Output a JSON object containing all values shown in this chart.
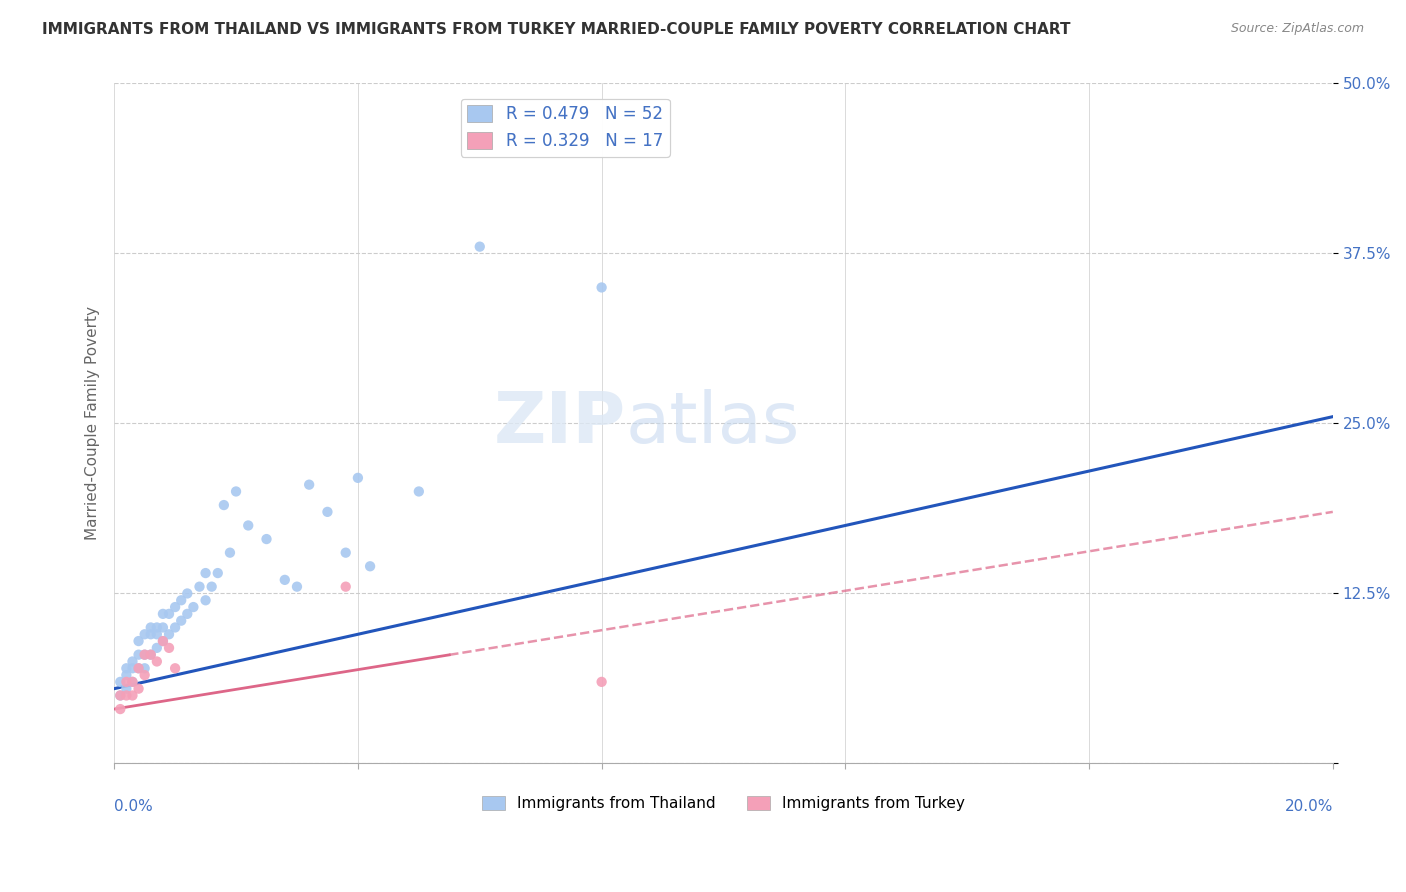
{
  "title": "IMMIGRANTS FROM THAILAND VS IMMIGRANTS FROM TURKEY MARRIED-COUPLE FAMILY POVERTY CORRELATION CHART",
  "source": "Source: ZipAtlas.com",
  "ylabel": "Married-Couple Family Poverty",
  "legend1": "R = 0.479   N = 52",
  "legend2": "R = 0.329   N = 17",
  "legend_label1": "Immigrants from Thailand",
  "legend_label2": "Immigrants from Turkey",
  "color_thailand": "#a8c8f0",
  "color_turkey": "#f4a0b8",
  "line_color_thailand": "#2255bb",
  "line_color_turkey": "#dd6688",
  "xlim": [
    0,
    0.2
  ],
  "ylim": [
    0,
    0.5
  ],
  "thailand_x": [
    0.001,
    0.001,
    0.002,
    0.002,
    0.002,
    0.003,
    0.003,
    0.003,
    0.004,
    0.004,
    0.004,
    0.005,
    0.005,
    0.005,
    0.006,
    0.006,
    0.006,
    0.007,
    0.007,
    0.007,
    0.008,
    0.008,
    0.008,
    0.009,
    0.009,
    0.01,
    0.01,
    0.011,
    0.011,
    0.012,
    0.012,
    0.013,
    0.014,
    0.015,
    0.015,
    0.016,
    0.017,
    0.018,
    0.019,
    0.02,
    0.022,
    0.025,
    0.028,
    0.03,
    0.032,
    0.035,
    0.038,
    0.04,
    0.042,
    0.05,
    0.06,
    0.08
  ],
  "thailand_y": [
    0.05,
    0.06,
    0.055,
    0.065,
    0.07,
    0.06,
    0.07,
    0.075,
    0.07,
    0.08,
    0.09,
    0.07,
    0.08,
    0.095,
    0.08,
    0.095,
    0.1,
    0.085,
    0.095,
    0.1,
    0.09,
    0.1,
    0.11,
    0.095,
    0.11,
    0.1,
    0.115,
    0.105,
    0.12,
    0.11,
    0.125,
    0.115,
    0.13,
    0.12,
    0.14,
    0.13,
    0.14,
    0.19,
    0.155,
    0.2,
    0.175,
    0.165,
    0.135,
    0.13,
    0.205,
    0.185,
    0.155,
    0.21,
    0.145,
    0.2,
    0.38,
    0.35
  ],
  "turkey_x": [
    0.001,
    0.001,
    0.002,
    0.002,
    0.003,
    0.003,
    0.004,
    0.004,
    0.005,
    0.005,
    0.006,
    0.007,
    0.008,
    0.009,
    0.01,
    0.038,
    0.08
  ],
  "turkey_y": [
    0.04,
    0.05,
    0.05,
    0.06,
    0.05,
    0.06,
    0.055,
    0.07,
    0.065,
    0.08,
    0.08,
    0.075,
    0.09,
    0.085,
    0.07,
    0.13,
    0.06
  ],
  "ytick_vals": [
    0.0,
    0.125,
    0.25,
    0.375,
    0.5
  ],
  "ytick_labels": [
    "",
    "12.5%",
    "25.0%",
    "37.5%",
    "50.0%"
  ]
}
